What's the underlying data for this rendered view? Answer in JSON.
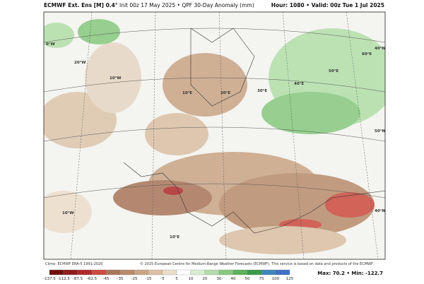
{
  "header": {
    "model": "ECMWF Ext. Ens [M] 0.4°",
    "subtitle": "Init 00z 17 May 2025 • QPF 30-Day Anomaly (mm)",
    "hour": "Hour: 1080 • Valid: 00z Tue 1 Jul 2025"
  },
  "map_labels": [
    "0°W",
    "20°W",
    "10°W",
    "10°E",
    "20°E",
    "30°E",
    "40°E",
    "50°E",
    "60°E",
    "50°N",
    "40°N",
    "10°W",
    "10°E",
    "40°N"
  ],
  "footer": {
    "climo": "Climo: ECMWF ERA-5 1991-2020",
    "credit": "© 2025 European Centre for Medium-Range Weather Forecasts (ECMWF). This service is based on data and products of the ECMWF.",
    "extremes": "Max: 70.2 • Min: -122.7"
  },
  "colorbar": {
    "ticks": [
      -137.5,
      -112.5,
      -87.5,
      -62.5,
      -45,
      -35,
      -25,
      -15,
      -5,
      5,
      10,
      20,
      30,
      40,
      50,
      75,
      100,
      125
    ],
    "colors": [
      "#6e0f0f",
      "#8f1d1d",
      "#b02a2a",
      "#cc4a3f",
      "#a9765a",
      "#b98c6c",
      "#c9a585",
      "#dbc0a4",
      "#ebdccb",
      "#ffffff",
      "#d8eed3",
      "#b2dea9",
      "#86c97f",
      "#5bb25a",
      "#3a9a48",
      "#3f86b8",
      "#3e6fc4"
    ]
  }
}
